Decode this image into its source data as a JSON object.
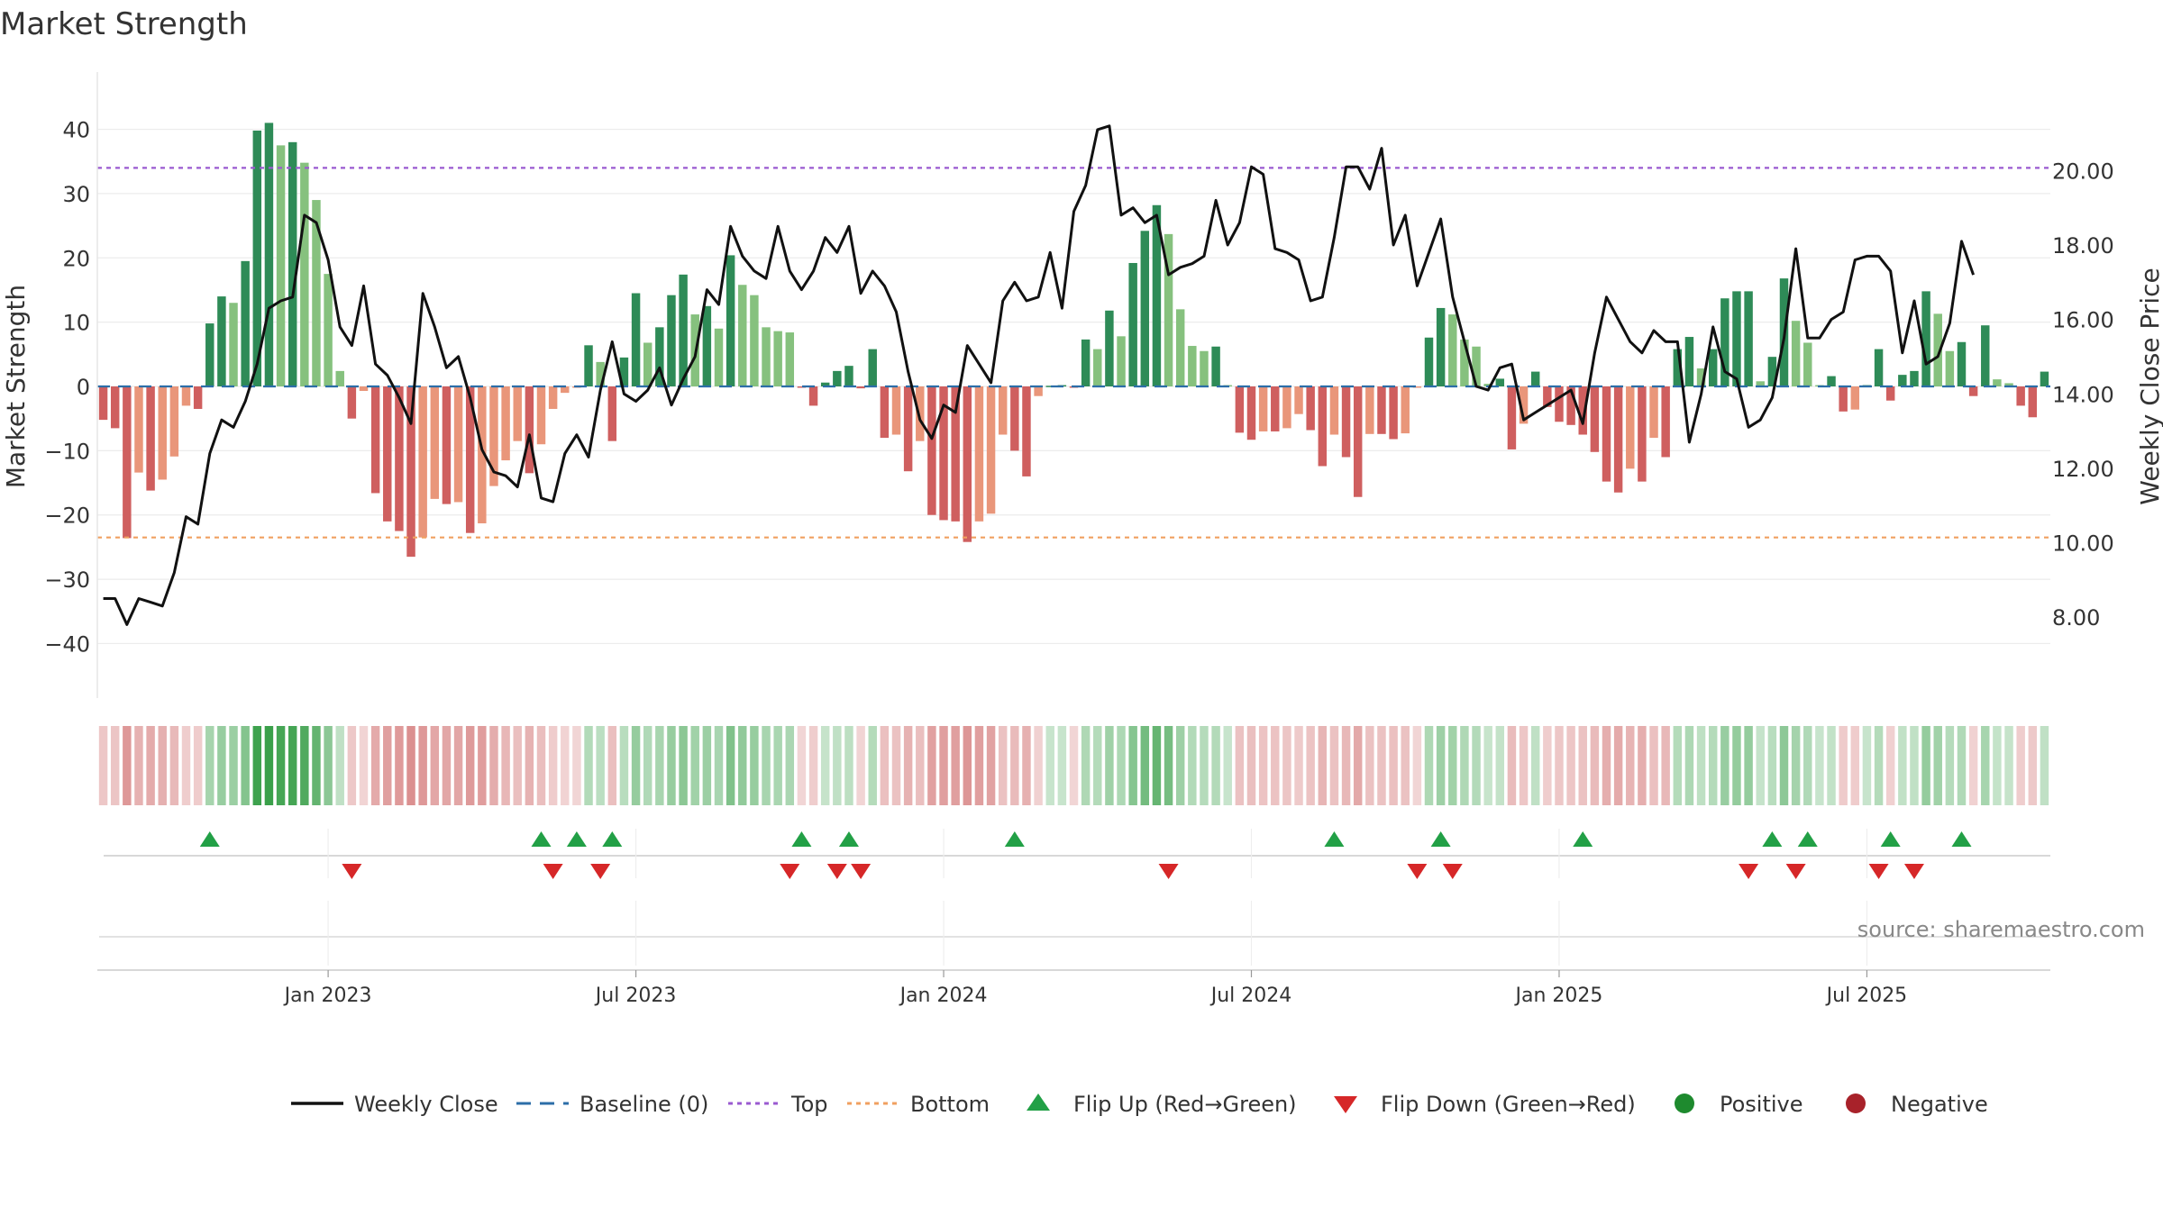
{
  "chart_data": {
    "type": "bar",
    "title": "Market Strength",
    "source": "source: sharemaestro.com",
    "left_axis": {
      "label": "Market Strength",
      "ylim": [
        -44,
        44
      ],
      "ticks": [
        40,
        30,
        20,
        10,
        0,
        -10,
        -20,
        -30,
        -40
      ],
      "tick_labels": [
        "40",
        "30",
        "20",
        "10",
        "0",
        "−10",
        "−20",
        "−30",
        "−40"
      ]
    },
    "right_axis": {
      "label": "Weekly Close Price",
      "ylim": [
        6.6,
        21.8
      ],
      "ticks": [
        20,
        18,
        16,
        14,
        12,
        10,
        8
      ],
      "tick_labels": [
        "20.00",
        "18.00",
        "16.00",
        "14.00",
        "12.00",
        "10.00",
        "8.00"
      ]
    },
    "x_ticks": [
      {
        "label": "Jan 2023",
        "week": 19
      },
      {
        "label": "Jul 2023",
        "week": 45
      },
      {
        "label": "Jan 2024",
        "week": 71
      },
      {
        "label": "Jul 2024",
        "week": 97
      },
      {
        "label": "Jan 2025",
        "week": 123
      },
      {
        "label": "Jul 2025",
        "week": 149
      }
    ],
    "top_line": 34,
    "bottom_line": -23.5,
    "strength": [
      -5.2,
      -6.5,
      -23.6,
      -13.4,
      -16.2,
      -14.5,
      -10.9,
      -3,
      -3.5,
      9.8,
      14,
      13,
      19.5,
      39.8,
      41,
      37.5,
      38,
      34.8,
      29,
      17.5,
      2.4,
      -5,
      -0.7,
      -16.6,
      -21,
      -22.5,
      -26.5,
      -23.5,
      -17.5,
      -18.3,
      -18,
      -22.8,
      -21.3,
      -15.5,
      -11.5,
      -8.5,
      -13.5,
      -9,
      -3.5,
      -1,
      -0.2,
      6.4,
      3.8,
      -8.5,
      4.5,
      14.5,
      6.8,
      9.2,
      14.2,
      17.4,
      11.2,
      12.5,
      9,
      20.4,
      15.8,
      14.2,
      9.2,
      8.6,
      8.4,
      -0.2,
      -3,
      0.6,
      2.4,
      3.2,
      -0.3,
      5.8,
      -8,
      -7.5,
      -13.2,
      -8.5,
      -20,
      -20.8,
      -21,
      -24.2,
      -21,
      -19.8,
      -7.5,
      -10,
      -14,
      -1.5,
      0.1,
      0.2,
      -0.2,
      7.3,
      5.8,
      11.8,
      7.8,
      19.2,
      24.2,
      28.2,
      23.7,
      12,
      6.3,
      5.5,
      6.2,
      0.2,
      -7.2,
      -8.3,
      -7,
      -7,
      -6.5,
      -4.3,
      -6.8,
      -12.4,
      -7.5,
      -11,
      -17.2,
      -7.4,
      -7.4,
      -8.2,
      -7.3,
      -0.2,
      7.6,
      12.2,
      11.2,
      7.3,
      6.2,
      0.4,
      1.2,
      -9.8,
      -5.8,
      2.3,
      -3.2,
      -5.5,
      -6,
      -7.5,
      -10.2,
      -14.8,
      -16.5,
      -12.8,
      -14.8,
      -8,
      -11,
      5.8,
      7.7,
      2.8,
      5.8,
      13.7,
      14.8,
      14.8,
      0.8,
      4.6,
      16.8,
      10.2,
      6.8,
      0.2,
      1.6,
      -3.9,
      -3.6,
      0.2,
      5.8,
      -2.2,
      1.8,
      2.4,
      14.8,
      11.3,
      5.5,
      6.9,
      -1.5,
      9.5,
      1.1,
      0.5,
      -3,
      -4.8,
      2.3
    ],
    "weekly_close": [
      8.5,
      8.5,
      7.8,
      8.5,
      8.4,
      8.3,
      9.2,
      10.7,
      10.5,
      12.4,
      13.3,
      13.1,
      13.8,
      14.8,
      16.3,
      16.5,
      16.6,
      18.8,
      18.6,
      17.6,
      15.8,
      15.3,
      16.9,
      14.8,
      14.5,
      13.9,
      13.2,
      16.7,
      15.8,
      14.7,
      15,
      13.9,
      12.5,
      11.9,
      11.8,
      11.5,
      12.9,
      11.2,
      11.1,
      12.4,
      12.9,
      12.3,
      14.1,
      15.4,
      14,
      13.8,
      14.1,
      14.7,
      13.7,
      14.4,
      15,
      16.8,
      16.4,
      18.5,
      17.7,
      17.3,
      17.1,
      18.5,
      17.3,
      16.8,
      17.3,
      18.2,
      17.8,
      18.5,
      16.7,
      17.3,
      16.9,
      16.2,
      14.6,
      13.3,
      12.8,
      13.7,
      13.5,
      15.3,
      14.8,
      14.3,
      16.5,
      17,
      16.5,
      16.6,
      17.8,
      16.3,
      18.9,
      19.6,
      21.1,
      21.2,
      18.8,
      19,
      18.6,
      18.8,
      17.2,
      17.4,
      17.5,
      17.7,
      19.2,
      18,
      18.6,
      20.1,
      19.9,
      17.9,
      17.8,
      17.6,
      16.5,
      16.6,
      18.2,
      20.1,
      20.1,
      19.5,
      20.6,
      18,
      18.8,
      16.9,
      17.8,
      18.7,
      16.6,
      15.4,
      14.2,
      14.1,
      14.7,
      14.8,
      13.3,
      13.5,
      13.7,
      13.9,
      14.1,
      13.2,
      15.1,
      16.6,
      16,
      15.4,
      15.1,
      15.7,
      15.4,
      15.4,
      12.7,
      14,
      15.8,
      14.6,
      14.4,
      13.1,
      13.3,
      13.9,
      15.5,
      17.9,
      15.5,
      15.5,
      16,
      16.2,
      17.6,
      17.7,
      17.7,
      17.3,
      15.1,
      16.5,
      14.8,
      15,
      15.9,
      18.1,
      17.2
    ],
    "flip_up_weeks": [
      9,
      37,
      40,
      43,
      59,
      63,
      77,
      104,
      113,
      125,
      141,
      144,
      151,
      157
    ],
    "flip_down_weeks": [
      21,
      38,
      42,
      58,
      62,
      64,
      90,
      111,
      114,
      139,
      143,
      150,
      153
    ],
    "legend": [
      {
        "label": "Weekly Close",
        "kind": "line-solid",
        "color": "#111111"
      },
      {
        "label": "Baseline (0)",
        "kind": "line-dashed",
        "color": "#2c6ea8"
      },
      {
        "label": "Top",
        "kind": "line-dotted",
        "color": "#9a5ad0"
      },
      {
        "label": "Bottom",
        "kind": "line-dotted",
        "color": "#f0a060"
      },
      {
        "label": "Flip Up (Red→Green)",
        "kind": "triangle-up",
        "color": "#22a046"
      },
      {
        "label": "Flip Down (Green→Red)",
        "kind": "triangle-down",
        "color": "#d62728"
      },
      {
        "label": "Positive",
        "kind": "dot",
        "color": "#1e8a2e"
      },
      {
        "label": "Negative",
        "kind": "dot",
        "color": "#a8222a"
      }
    ],
    "colors": {
      "pos_strong": "#2e8b57",
      "pos_light": "#86c17e",
      "neg_strong": "#cf5f5f",
      "neg_light": "#e9967a",
      "baseline": "#2c6ea8",
      "top": "#9a5ad0",
      "bottom": "#f0a060",
      "close_line": "#111111",
      "flip_up": "#22a046",
      "flip_down": "#d62728"
    }
  }
}
